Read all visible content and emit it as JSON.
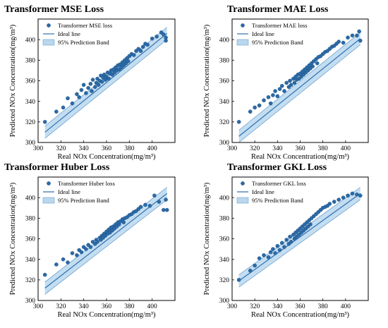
{
  "colors": {
    "point": "#2b6aa6",
    "point_edge": "#1a4e80",
    "ideal_line": "#2e6fae",
    "band_fill": "#b9d7ee",
    "band_edge": "#6fa3cf",
    "axis": "#000000"
  },
  "chart_data": [
    {
      "type": "scatter",
      "title": "Transformer MSE Loss",
      "xlabel": "Real NOx Concentration(mg/m³)",
      "ylabel": "Predicted NOx Concentration(mg/m³)",
      "xlim": [
        300,
        420
      ],
      "ylim": [
        300,
        420
      ],
      "xticks": [
        "300",
        "320",
        "340",
        "360",
        "380",
        "400"
      ],
      "yticks": [
        "300",
        "320",
        "340",
        "360",
        "380",
        "400"
      ],
      "legend_position": "top-left",
      "legend": [
        "Transformer MSE loss",
        "Ideal line",
        "95% Prediction Band"
      ],
      "ideal_line": {
        "x": [
          306,
          413
        ],
        "y": [
          310,
          406
        ]
      },
      "prediction_band_halfwidth": 6,
      "points": [
        [
          306,
          320
        ],
        [
          316,
          330
        ],
        [
          322,
          334
        ],
        [
          326,
          343
        ],
        [
          330,
          338
        ],
        [
          334,
          347
        ],
        [
          336,
          344
        ],
        [
          338,
          351
        ],
        [
          340,
          356
        ],
        [
          342,
          348
        ],
        [
          344,
          353
        ],
        [
          346,
          357
        ],
        [
          347,
          350
        ],
        [
          348,
          361
        ],
        [
          350,
          354
        ],
        [
          351,
          358
        ],
        [
          352,
          362
        ],
        [
          353,
          356
        ],
        [
          354,
          360
        ],
        [
          355,
          365
        ],
        [
          356,
          359
        ],
        [
          357,
          363
        ],
        [
          358,
          366
        ],
        [
          359,
          361
        ],
        [
          360,
          364
        ],
        [
          361,
          368
        ],
        [
          362,
          362
        ],
        [
          363,
          367
        ],
        [
          364,
          370
        ],
        [
          365,
          366
        ],
        [
          366,
          371
        ],
        [
          367,
          368
        ],
        [
          368,
          373
        ],
        [
          369,
          370
        ],
        [
          370,
          375
        ],
        [
          371,
          371
        ],
        [
          372,
          376
        ],
        [
          373,
          373
        ],
        [
          374,
          378
        ],
        [
          375,
          375
        ],
        [
          376,
          380
        ],
        [
          377,
          377
        ],
        [
          378,
          382
        ],
        [
          379,
          379
        ],
        [
          380,
          384
        ],
        [
          382,
          386
        ],
        [
          384,
          385
        ],
        [
          386,
          389
        ],
        [
          388,
          391
        ],
        [
          390,
          389
        ],
        [
          392,
          393
        ],
        [
          394,
          396
        ],
        [
          396,
          395
        ],
        [
          400,
          401
        ],
        [
          404,
          403
        ],
        [
          408,
          407
        ],
        [
          410,
          405
        ],
        [
          412,
          402
        ],
        [
          412,
          399
        ]
      ]
    },
    {
      "type": "scatter",
      "title": "Transformer MAE Loss",
      "xlabel": "Real NOx Concentration(mg/m³)",
      "ylabel": "Predicted NOx Concentration(mg/m³)",
      "xlim": [
        300,
        420
      ],
      "ylim": [
        300,
        420
      ],
      "xticks": [
        "300",
        "320",
        "340",
        "360",
        "380",
        "400"
      ],
      "yticks": [
        "300",
        "320",
        "340",
        "360",
        "380",
        "400"
      ],
      "legend_position": "top-left",
      "legend": [
        "Transformer MAE loss",
        "Ideal line",
        "95% Prediction Band"
      ],
      "ideal_line": {
        "x": [
          306,
          413
        ],
        "y": [
          306,
          401
        ]
      },
      "prediction_band_halfwidth": 6,
      "points": [
        [
          306,
          320
        ],
        [
          316,
          330
        ],
        [
          320,
          334
        ],
        [
          324,
          336
        ],
        [
          328,
          341
        ],
        [
          332,
          344
        ],
        [
          334,
          338
        ],
        [
          336,
          346
        ],
        [
          338,
          350
        ],
        [
          340,
          345
        ],
        [
          342,
          352
        ],
        [
          344,
          355
        ],
        [
          346,
          350
        ],
        [
          348,
          358
        ],
        [
          350,
          354
        ],
        [
          351,
          360
        ],
        [
          352,
          356
        ],
        [
          354,
          362
        ],
        [
          355,
          358
        ],
        [
          356,
          364
        ],
        [
          357,
          361
        ],
        [
          358,
          366
        ],
        [
          359,
          362
        ],
        [
          360,
          367
        ],
        [
          361,
          364
        ],
        [
          362,
          369
        ],
        [
          363,
          366
        ],
        [
          364,
          371
        ],
        [
          365,
          368
        ],
        [
          366,
          373
        ],
        [
          367,
          370
        ],
        [
          368,
          375
        ],
        [
          369,
          372
        ],
        [
          370,
          377
        ],
        [
          371,
          374
        ],
        [
          372,
          379
        ],
        [
          374,
          381
        ],
        [
          375,
          377
        ],
        [
          376,
          383
        ],
        [
          378,
          384
        ],
        [
          380,
          386
        ],
        [
          382,
          388
        ],
        [
          384,
          389
        ],
        [
          386,
          391
        ],
        [
          388,
          393
        ],
        [
          390,
          394
        ],
        [
          392,
          396
        ],
        [
          394,
          398
        ],
        [
          398,
          397
        ],
        [
          402,
          402
        ],
        [
          406,
          404
        ],
        [
          410,
          404
        ],
        [
          412,
          408
        ],
        [
          413,
          399
        ]
      ]
    },
    {
      "type": "scatter",
      "title": "Transformer Huber Loss",
      "xlabel": "Real NOx Concentration(mg/m³)",
      "ylabel": "Predicted NOx Concentration(mg/m³)",
      "xlim": [
        300,
        420
      ],
      "ylim": [
        300,
        420
      ],
      "xticks": [
        "300",
        "320",
        "340",
        "360",
        "380",
        "400"
      ],
      "yticks": [
        "300",
        "320",
        "340",
        "360",
        "380",
        "400"
      ],
      "legend_position": "top-left",
      "legend": [
        "Transformer Huber loss",
        "Ideal line",
        "95% Prediction Band"
      ],
      "ideal_line": {
        "x": [
          306,
          413
        ],
        "y": [
          312,
          404
        ]
      },
      "prediction_band_halfwidth": 6,
      "points": [
        [
          306,
          325
        ],
        [
          316,
          335
        ],
        [
          322,
          340
        ],
        [
          326,
          337
        ],
        [
          330,
          346
        ],
        [
          334,
          344
        ],
        [
          336,
          349
        ],
        [
          338,
          347
        ],
        [
          340,
          352
        ],
        [
          342,
          350
        ],
        [
          344,
          354
        ],
        [
          346,
          352
        ],
        [
          348,
          357
        ],
        [
          350,
          355
        ],
        [
          351,
          359
        ],
        [
          352,
          357
        ],
        [
          354,
          361
        ],
        [
          355,
          359
        ],
        [
          356,
          363
        ],
        [
          357,
          361
        ],
        [
          358,
          365
        ],
        [
          359,
          363
        ],
        [
          360,
          367
        ],
        [
          361,
          365
        ],
        [
          362,
          369
        ],
        [
          363,
          366
        ],
        [
          364,
          371
        ],
        [
          365,
          368
        ],
        [
          366,
          372
        ],
        [
          367,
          370
        ],
        [
          368,
          374
        ],
        [
          369,
          372
        ],
        [
          370,
          376
        ],
        [
          371,
          374
        ],
        [
          372,
          377
        ],
        [
          374,
          379
        ],
        [
          375,
          376
        ],
        [
          376,
          380
        ],
        [
          378,
          381
        ],
        [
          380,
          383
        ],
        [
          382,
          384
        ],
        [
          384,
          386
        ],
        [
          386,
          387
        ],
        [
          388,
          389
        ],
        [
          390,
          391
        ],
        [
          394,
          393
        ],
        [
          398,
          392
        ],
        [
          402,
          402
        ],
        [
          406,
          396
        ],
        [
          410,
          388
        ],
        [
          412,
          398
        ],
        [
          413,
          388
        ]
      ]
    },
    {
      "type": "scatter",
      "title": "Transformer GKL Loss",
      "xlabel": "Real NOx Concentration(mg/m³)",
      "ylabel": "Predicted NOx Concentration(mg/m³)",
      "xlim": [
        300,
        420
      ],
      "ylim": [
        300,
        420
      ],
      "xticks": [
        "300",
        "320",
        "340",
        "360",
        "380",
        "400"
      ],
      "yticks": [
        "300",
        "320",
        "340",
        "360",
        "380",
        "400"
      ],
      "legend_position": "top-left",
      "legend": [
        "Transformer GKL loss",
        "Ideal line",
        "95% Prediction Band"
      ],
      "ideal_line": {
        "x": [
          306,
          413
        ],
        "y": [
          319,
          404
        ]
      },
      "prediction_band_halfwidth": 6,
      "points": [
        [
          306,
          320
        ],
        [
          316,
          329
        ],
        [
          320,
          334
        ],
        [
          324,
          341
        ],
        [
          328,
          344
        ],
        [
          332,
          342
        ],
        [
          334,
          347
        ],
        [
          336,
          350
        ],
        [
          338,
          346
        ],
        [
          340,
          353
        ],
        [
          342,
          349
        ],
        [
          344,
          356
        ],
        [
          346,
          352
        ],
        [
          348,
          359
        ],
        [
          350,
          355
        ],
        [
          351,
          362
        ],
        [
          352,
          357
        ],
        [
          354,
          364
        ],
        [
          355,
          360
        ],
        [
          356,
          366
        ],
        [
          357,
          362
        ],
        [
          358,
          368
        ],
        [
          359,
          364
        ],
        [
          360,
          370
        ],
        [
          361,
          366
        ],
        [
          362,
          372
        ],
        [
          363,
          368
        ],
        [
          364,
          374
        ],
        [
          365,
          370
        ],
        [
          366,
          376
        ],
        [
          367,
          372
        ],
        [
          368,
          378
        ],
        [
          369,
          374
        ],
        [
          370,
          380
        ],
        [
          372,
          382
        ],
        [
          374,
          384
        ],
        [
          376,
          386
        ],
        [
          378,
          388
        ],
        [
          380,
          390
        ],
        [
          382,
          391
        ],
        [
          384,
          392
        ],
        [
          386,
          394
        ],
        [
          390,
          396
        ],
        [
          394,
          398
        ],
        [
          398,
          400
        ],
        [
          402,
          402
        ],
        [
          406,
          404
        ],
        [
          410,
          403
        ],
        [
          413,
          402
        ]
      ]
    }
  ]
}
